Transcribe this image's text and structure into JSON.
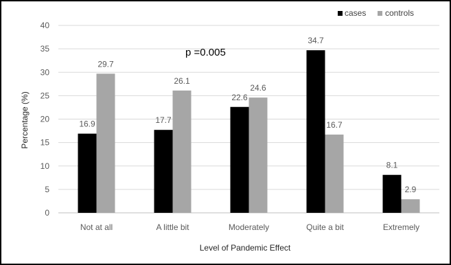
{
  "chart_data": {
    "type": "bar",
    "categories": [
      "Not at all",
      "A little bit",
      "Moderately",
      "Quite a bit",
      "Extremely"
    ],
    "series": [
      {
        "name": "cases",
        "values": [
          16.9,
          17.7,
          22.6,
          34.7,
          8.1
        ],
        "color": "#000000"
      },
      {
        "name": "controls",
        "values": [
          29.7,
          26.1,
          24.6,
          16.7,
          2.9
        ],
        "color": "#a6a6a6"
      }
    ],
    "xlabel": "Level of Pandemic Effect",
    "ylabel": "Percentage (%)",
    "ylim": [
      0,
      40
    ],
    "yticks": [
      0,
      5,
      10,
      15,
      20,
      25,
      30,
      35,
      40
    ],
    "annotation": "p =0.005",
    "grid": true,
    "legend": "top-right"
  }
}
